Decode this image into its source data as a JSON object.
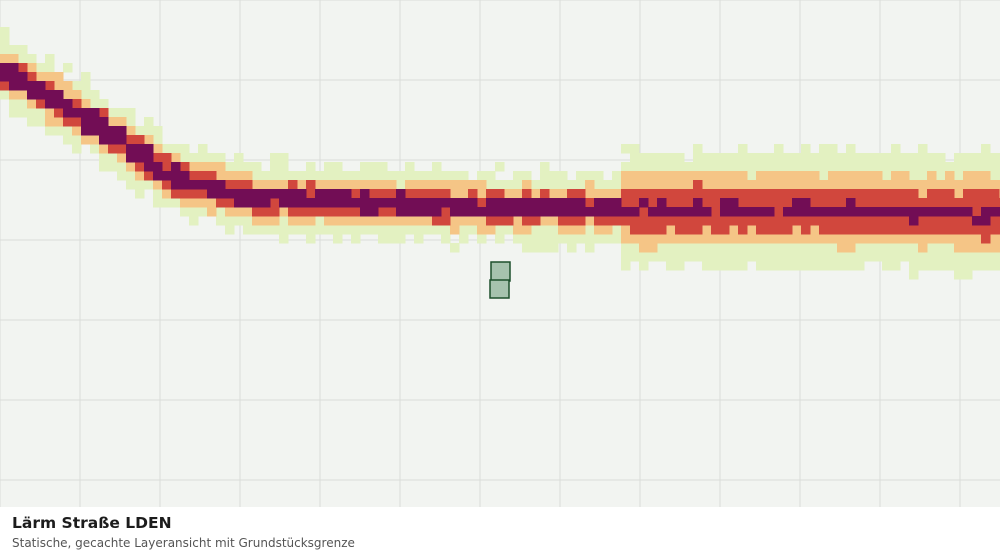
{
  "title": "Lärm Straße LDEN",
  "subtitle": "Statische, gecachte Layeransicht mit Grundstücksgrenze",
  "colors": {
    "background": "#f2f4f1",
    "grid": "#dadcd9",
    "noise_band_1": "#e3f1c1",
    "noise_band_2": "#f5c586",
    "noise_band_3": "#d1473d",
    "noise_band_4": "#720d55",
    "parcel_fill": "#a6c2ae",
    "parcel_stroke": "#1d4f2c"
  },
  "layers": [
    {
      "name": "noise-band-1",
      "color_key": "noise_band_1"
    },
    {
      "name": "noise-band-2",
      "color_key": "noise_band_2"
    },
    {
      "name": "noise-band-3",
      "color_key": "noise_band_3"
    },
    {
      "name": "noise-band-4",
      "color_key": "noise_band_4"
    }
  ],
  "parcel": {
    "name": "grundstuecksgrenze"
  }
}
